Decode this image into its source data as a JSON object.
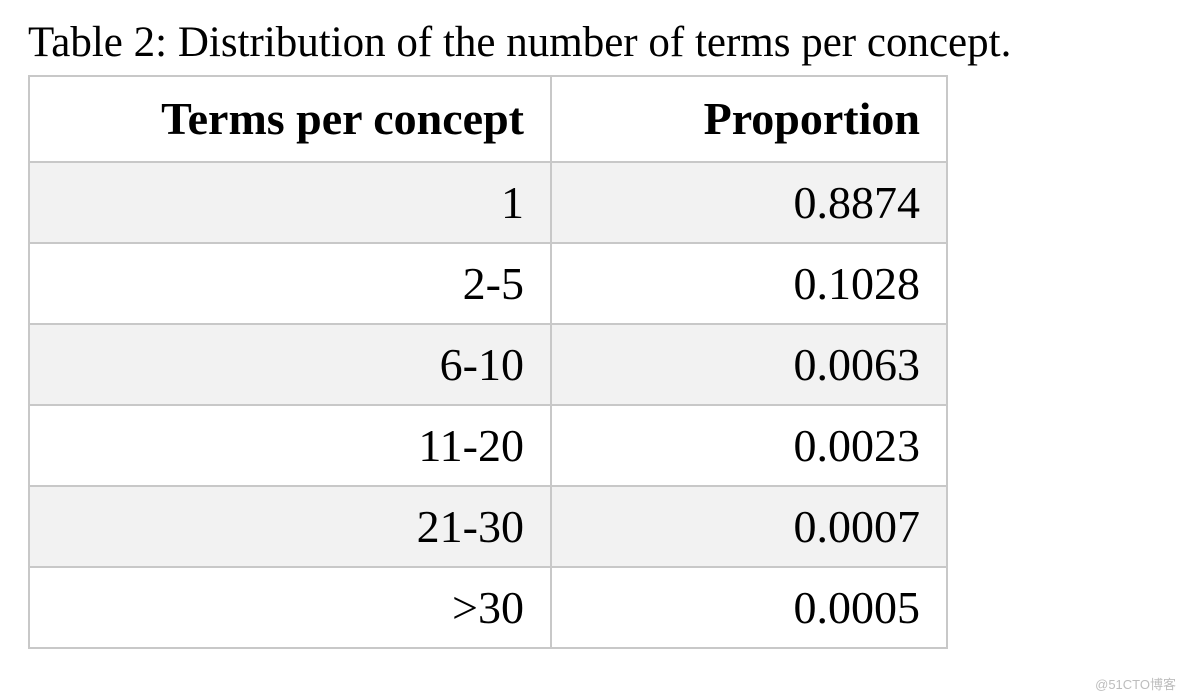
{
  "caption": "Table 2: Distribution of the number of terms per concept.",
  "table": {
    "headers": [
      "Terms per concept",
      "Proportion"
    ],
    "rows": [
      [
        "1",
        "0.8874"
      ],
      [
        "2-5",
        "0.1028"
      ],
      [
        "6-10",
        "0.0063"
      ],
      [
        "11-20",
        "0.0023"
      ],
      [
        "21-30",
        "0.0007"
      ],
      [
        ">30",
        "0.0005"
      ]
    ]
  },
  "watermark": "@51CTO博客",
  "colors": {
    "row_alt": "#f2f2f2",
    "border": "#c8c8c8"
  }
}
